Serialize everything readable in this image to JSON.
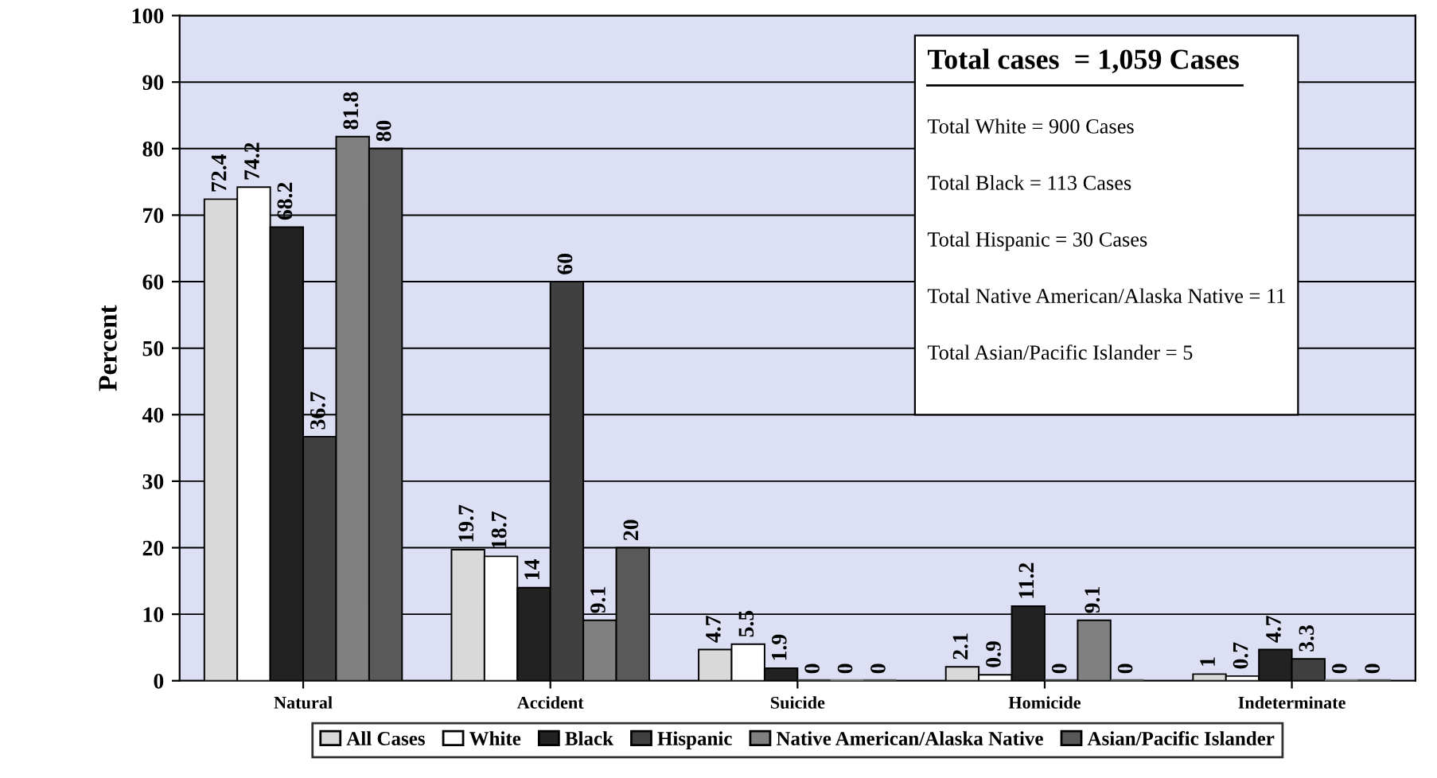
{
  "chart_data": {
    "type": "bar",
    "ylabel": "Percent",
    "categories": [
      "Natural",
      "Accident",
      "Suicide",
      "Homicide",
      "Indeterminate"
    ],
    "series": [
      {
        "name": "All Cases",
        "color": "#d9d9d9",
        "values": [
          72.4,
          19.7,
          4.7,
          2.1,
          1
        ]
      },
      {
        "name": "White",
        "color": "#ffffff",
        "values": [
          74.2,
          18.7,
          5.5,
          0.9,
          0.7
        ]
      },
      {
        "name": "Black",
        "color": "#222222",
        "values": [
          68.2,
          14,
          1.9,
          11.2,
          4.7
        ]
      },
      {
        "name": "Hispanic",
        "color": "#404040",
        "values": [
          36.7,
          60,
          0,
          0,
          3.3
        ]
      },
      {
        "name": "Native American/Alaska Native",
        "color": "#808080",
        "values": [
          81.8,
          9.1,
          0,
          9.1,
          0
        ]
      },
      {
        "name": "Asian/Pacific Islander",
        "color": "#595959",
        "values": [
          80,
          20,
          0,
          0,
          0
        ]
      }
    ],
    "ylim": [
      0,
      100
    ],
    "yticks": [
      0,
      10,
      20,
      30,
      40,
      50,
      60,
      70,
      80,
      90,
      100
    ],
    "grid": "y",
    "legend": "bottom",
    "data_labels": true,
    "annotations": [
      "Total cases  = 1,059 Cases",
      "Total White = 900 Cases",
      "Total Black = 113 Cases",
      "Total Hispanic = 30 Cases",
      "Total Native American/Alaska Native = 11",
      "Total Asian/Pacific Islander = 5"
    ]
  }
}
